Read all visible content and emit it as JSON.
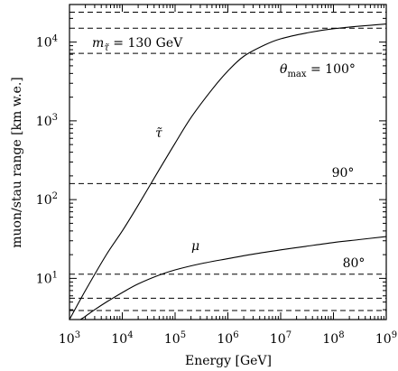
{
  "chart_data": {
    "type": "line",
    "title": "",
    "xlabel": "Energy [GeV]",
    "ylabel": "muon/stau range [km w.e.]",
    "xscale": "log",
    "yscale": "log",
    "xlim": [
      1000,
      1000000000
    ],
    "ylim": [
      3,
      30000
    ],
    "grid": false,
    "x_ticks": [
      1000,
      10000,
      100000,
      1000000,
      10000000,
      100000000,
      1000000000
    ],
    "x_tick_labels": [
      {
        "base": "10",
        "exp": "3"
      },
      {
        "base": "10",
        "exp": "4"
      },
      {
        "base": "10",
        "exp": "5"
      },
      {
        "base": "10",
        "exp": "6"
      },
      {
        "base": "10",
        "exp": "7"
      },
      {
        "base": "10",
        "exp": "8"
      },
      {
        "base": "10",
        "exp": "9"
      }
    ],
    "y_ticks": [
      10,
      100,
      1000,
      10000
    ],
    "y_tick_labels": [
      {
        "base": "10",
        "exp": "1"
      },
      {
        "base": "10",
        "exp": "2"
      },
      {
        "base": "10",
        "exp": "3"
      },
      {
        "base": "10",
        "exp": "4"
      }
    ],
    "series": [
      {
        "label": "τ̃",
        "x": [
          1000,
          2000,
          5000,
          10000,
          20000,
          50000,
          100000,
          200000,
          500000,
          1000000,
          2000000,
          5000000,
          10000000,
          30000000,
          100000000,
          1000000000
        ],
        "y": [
          3,
          7,
          20,
          40,
          85,
          240,
          520,
          1100,
          2500,
          4300,
          6600,
          9200,
          11000,
          13000,
          14800,
          17000
        ]
      },
      {
        "label": "μ",
        "x": [
          1000,
          1500,
          2000,
          3000,
          5000,
          10000,
          20000,
          50000,
          100000,
          300000,
          1000000,
          3000000,
          10000000,
          30000000,
          100000000,
          300000000,
          1000000000
        ],
        "y": [
          2.4,
          2.9,
          3.3,
          4.0,
          5.0,
          6.6,
          8.5,
          11.0,
          12.8,
          15.3,
          17.8,
          20.3,
          23.0,
          25.5,
          28.5,
          31.0,
          34.0
        ]
      }
    ],
    "reference_lines": [
      {
        "y": 24000,
        "label": ""
      },
      {
        "y": 15000,
        "label": ""
      },
      {
        "y": 7200,
        "label": "θ_max = 100°"
      },
      {
        "y": 160,
        "label": "90°"
      },
      {
        "y": 11.3,
        "label": "80°"
      },
      {
        "y": 5.6,
        "label": ""
      },
      {
        "y": 3.9,
        "label": ""
      }
    ],
    "annotations": {
      "mass": "m_τ̃ = 130 GeV",
      "stau": "τ̃",
      "muon": "μ",
      "theta100": "θ_max = 100°",
      "theta90": "90°",
      "theta80": "80°"
    }
  }
}
